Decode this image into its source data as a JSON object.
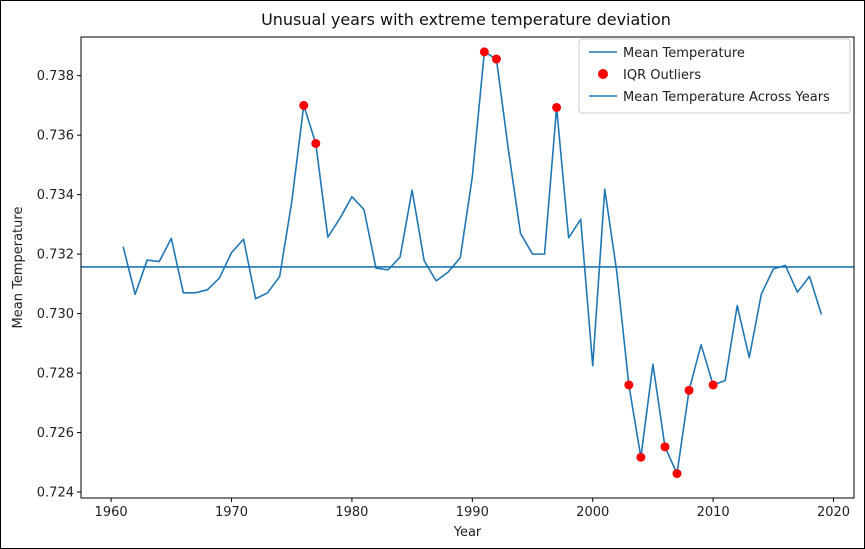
{
  "chart_data": {
    "type": "line",
    "title": "Unusual years with extreme temperature deviation",
    "xlabel": "Year",
    "ylabel": "Mean Temperature",
    "xlim": [
      1957.5,
      2021.7
    ],
    "ylim": [
      0.7238,
      0.7393
    ],
    "xticks": [
      1960,
      1970,
      1980,
      1990,
      2000,
      2010,
      2020
    ],
    "yticks": [
      0.724,
      0.726,
      0.728,
      0.73,
      0.732,
      0.734,
      0.736,
      0.738
    ],
    "ytick_labels": [
      "0.724",
      "0.726",
      "0.728",
      "0.730",
      "0.732",
      "0.734",
      "0.736",
      "0.738"
    ],
    "grid": false,
    "legend_position": "top-right",
    "colors": {
      "line": "#1f77b4",
      "outlier": "#ff0000"
    },
    "series": [
      {
        "name": "Mean Temperature",
        "x": [
          1961,
          1962,
          1963,
          1964,
          1965,
          1966,
          1967,
          1968,
          1969,
          1970,
          1971,
          1972,
          1973,
          1974,
          1975,
          1976,
          1977,
          1978,
          1979,
          1980,
          1981,
          1982,
          1983,
          1984,
          1985,
          1986,
          1987,
          1988,
          1989,
          1990,
          1991,
          1992,
          1993,
          1994,
          1995,
          1996,
          1997,
          1998,
          1999,
          2000,
          2001,
          2002,
          2003,
          2004,
          2005,
          2006,
          2007,
          2008,
          2009,
          2010,
          2011,
          2012,
          2013,
          2014,
          2015,
          2016,
          2017,
          2018,
          2019
        ],
        "y": [
          0.73225,
          0.73065,
          0.7318,
          0.73175,
          0.73253,
          0.7307,
          0.7307,
          0.7308,
          0.7312,
          0.73205,
          0.7325,
          0.7305,
          0.7307,
          0.73125,
          0.73375,
          0.737,
          0.73572,
          0.73257,
          0.7332,
          0.73393,
          0.7335,
          0.73153,
          0.73147,
          0.7319,
          0.73415,
          0.73178,
          0.7311,
          0.7314,
          0.73188,
          0.7346,
          0.7388,
          0.73856,
          0.7355,
          0.7327,
          0.732,
          0.732,
          0.73693,
          0.73255,
          0.73317,
          0.72825,
          0.73418,
          0.7314,
          0.7276,
          0.72517,
          0.7283,
          0.72552,
          0.72462,
          0.72742,
          0.72895,
          0.7276,
          0.72775,
          0.73027,
          0.72852,
          0.73065,
          0.7315,
          0.73162,
          0.73072,
          0.73125,
          0.72997
        ]
      },
      {
        "name": "IQR Outliers",
        "x": [
          1976,
          1977,
          1991,
          1992,
          1997,
          2003,
          2004,
          2006,
          2007,
          2008,
          2010
        ],
        "y": [
          0.737,
          0.73572,
          0.7388,
          0.73856,
          0.73693,
          0.7276,
          0.72517,
          0.72552,
          0.72462,
          0.72742,
          0.7276
        ]
      },
      {
        "name": "Mean Temperature Across Years",
        "value": 0.73157
      }
    ]
  }
}
